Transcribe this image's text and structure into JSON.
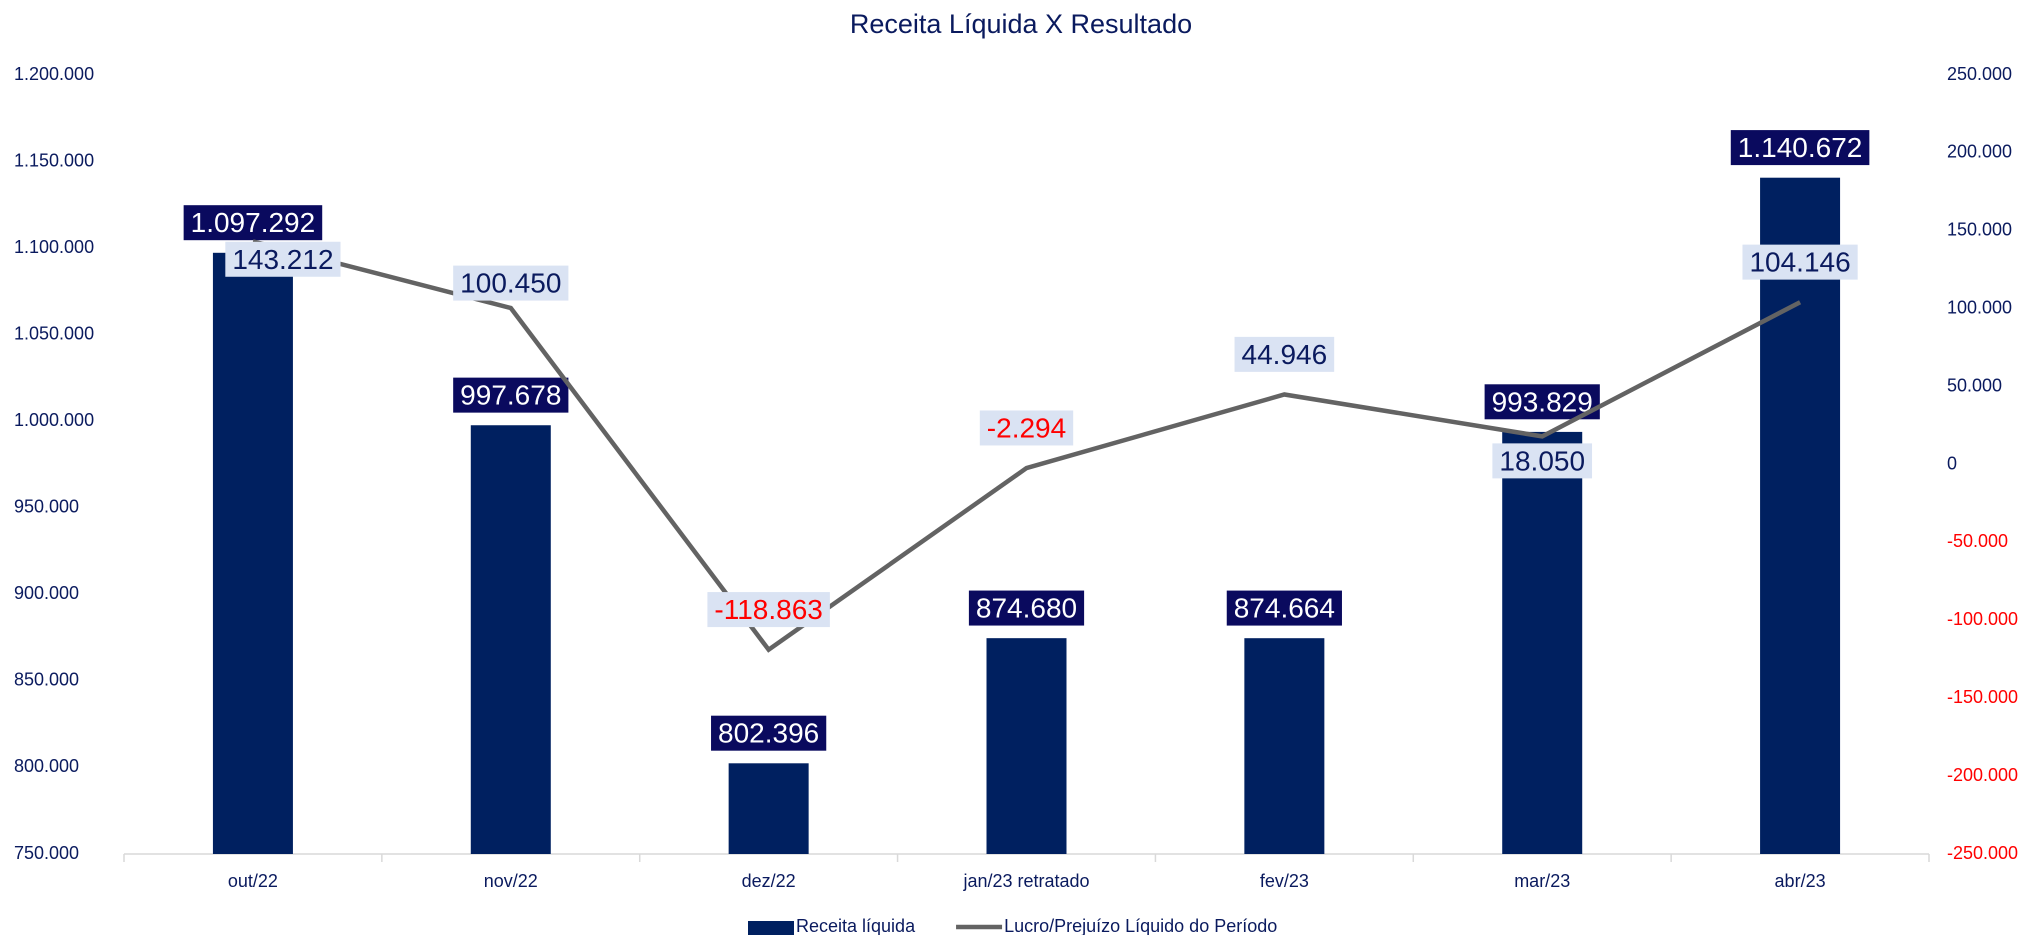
{
  "chart_data": {
    "type": "combo",
    "title": "Receita Líquida X Resultado",
    "categories": [
      "out/22",
      "nov/22",
      "dez/22",
      "jan/23 retratado",
      "fev/23",
      "mar/23",
      "abr/23"
    ],
    "series": [
      {
        "name": "Receita líquida",
        "type": "bar",
        "axis": "y",
        "color": "#002060",
        "label_bg": "#0a0a5e",
        "label_color": "#ffffff",
        "values": [
          1097292,
          997678,
          802396,
          874680,
          874664,
          993829,
          1140672
        ],
        "value_labels": [
          "1.097.292",
          "997.678",
          "802.396",
          "874.680",
          "874.664",
          "993.829",
          "1.140.672"
        ]
      },
      {
        "name": "Lucro/Prejuízo Líquido do Período",
        "type": "line",
        "axis": "y2",
        "color": "#636363",
        "label_bg": "#dae3f3",
        "label_color": "#0a1a5e",
        "values": [
          143212,
          100450,
          -118863,
          -2294,
          44946,
          18050,
          104146
        ],
        "value_labels": [
          "143.212",
          "100.450",
          "-118.863",
          "-2.294",
          "44.946",
          "18.050",
          "104.146"
        ]
      }
    ],
    "negative_color": "#ff0000",
    "ylim": [
      750000,
      1200000
    ],
    "yticks": [
      {
        "value": 750000,
        "label": "750.000"
      },
      {
        "value": 800000,
        "label": "800.000"
      },
      {
        "value": 850000,
        "label": "850.000"
      },
      {
        "value": 900000,
        "label": "900.000"
      },
      {
        "value": 950000,
        "label": "950.000"
      },
      {
        "value": 1000000,
        "label": "1.000.000"
      },
      {
        "value": 1050000,
        "label": "1.050.000"
      },
      {
        "value": 1100000,
        "label": "1.100.000"
      },
      {
        "value": 1150000,
        "label": "1.150.000"
      },
      {
        "value": 1200000,
        "label": "1.200.000"
      }
    ],
    "y2lim": [
      -250000,
      250000
    ],
    "y2ticks": [
      {
        "value": -250000,
        "label": "-250.000"
      },
      {
        "value": -200000,
        "label": "-200.000"
      },
      {
        "value": -150000,
        "label": "-150.000"
      },
      {
        "value": -100000,
        "label": "-100.000"
      },
      {
        "value": -50000,
        "label": "-50.000"
      },
      0,
      {
        "value": 50000,
        "label": "50.000"
      },
      {
        "value": 100000,
        "label": "100.000"
      },
      {
        "value": 150000,
        "label": "150.000"
      },
      {
        "value": 200000,
        "label": "200.000"
      },
      {
        "value": 250000,
        "label": "250.000"
      }
    ],
    "legend": "bottom"
  }
}
